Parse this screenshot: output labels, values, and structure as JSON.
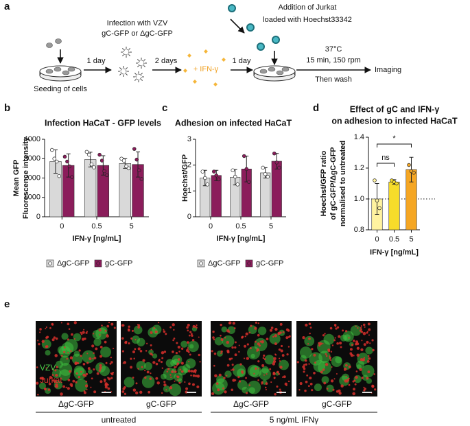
{
  "panel_labels": [
    "a",
    "b",
    "c",
    "d",
    "e"
  ],
  "workflow": {
    "seeding": "Seeding of cells",
    "infection": [
      "Infection with VZV",
      "gC-GFP or ΔgC-GFP"
    ],
    "step1": "1 day",
    "step2": "2 days",
    "ifn": "+ IFN-γ",
    "step3": "1 day",
    "jurkat": [
      "Addition of Jurkat",
      "loaded with Hoechst33342"
    ],
    "conditions": [
      "37°C",
      "15 min, 150 rpm"
    ],
    "wash": "Then wash",
    "readout": "Imaging"
  },
  "chart_data": [
    {
      "type": "bar",
      "title": [
        "Infection HaCaT - GFP levels"
      ],
      "y_label": [
        "Mean GFP",
        "Fluorescence intensity"
      ],
      "x_label": "IFN-γ [ng/mL]",
      "categories": [
        "0",
        "0.5",
        "5"
      ],
      "ylim": [
        0,
        4000
      ],
      "yticks": [
        0,
        1000,
        2000,
        3000,
        4000
      ],
      "legend": "bottom",
      "series": [
        {
          "name": "ΔgC-GFP",
          "color": "#d9d9d9",
          "values": [
            2850,
            2950,
            2750
          ],
          "errors": [
            600,
            380,
            250
          ],
          "points": [
            [
              3450,
              3000,
              2850,
              2100
            ],
            [
              3350,
              3200,
              2700,
              2550
            ],
            [
              3000,
              2900,
              2600,
              2500
            ]
          ]
        },
        {
          "name": "gC-GFP",
          "color": "#8b1d5b",
          "values": [
            2650,
            2650,
            2700
          ],
          "errors": [
            600,
            500,
            650
          ],
          "points": [
            [
              3100,
              2850,
              2600,
              2050
            ],
            [
              3200,
              2900,
              2350,
              2150
            ],
            [
              3500,
              2950,
              2400,
              1950
            ]
          ]
        }
      ]
    },
    {
      "type": "bar",
      "title": [
        "Adhesion on infected HaCaT"
      ],
      "y_label": [
        "Hoechst/GFP"
      ],
      "x_label": "IFN-γ [ng/mL]",
      "categories": [
        "0",
        "0.5",
        "5"
      ],
      "ylim": [
        0,
        3
      ],
      "yticks": [
        0,
        1,
        2,
        3
      ],
      "legend": "bottom",
      "series": [
        {
          "name": "ΔgC-GFP",
          "color": "#d9d9d9",
          "values": [
            1.5,
            1.53,
            1.7
          ],
          "errors": [
            0.3,
            0.3,
            0.2
          ],
          "points": [
            [
              1.75,
              1.5,
              1.25
            ],
            [
              1.8,
              1.55,
              1.25
            ],
            [
              1.9,
              1.65,
              1.55
            ]
          ]
        },
        {
          "name": "gC-GFP",
          "color": "#8b1d5b",
          "values": [
            1.6,
            1.85,
            2.15
          ],
          "errors": [
            0.2,
            0.5,
            0.3
          ],
          "points": [
            [
              1.75,
              1.6,
              1.45
            ],
            [
              2.35,
              1.85,
              1.35
            ],
            [
              2.45,
              2.1,
              1.9
            ]
          ]
        }
      ]
    },
    {
      "type": "bar",
      "title": [
        "Effect of gC and IFN-γ",
        "on adhesion to infected HaCaT"
      ],
      "y_label": [
        "Hoechst/GFP ratio",
        "of gC-GFP/ΔgC-GFP",
        "normalised to untreated"
      ],
      "x_label": "IFN-γ [ng/mL]",
      "categories": [
        "0",
        "0.5",
        "5"
      ],
      "ylim": [
        0.8,
        1.4
      ],
      "yticks": [
        {
          "value": 0.8,
          "label": "0.8"
        },
        {
          "value": 1.0,
          "label": "1.0"
        },
        {
          "value": 1.2,
          "label": "1.2"
        },
        {
          "value": 1.4,
          "label": "1.4"
        }
      ],
      "reference_line": 1,
      "series": [
        {
          "colors": [
            "#fff3a0",
            "#f7dc2a",
            "#f5a623"
          ],
          "values": [
            1.0,
            1.11,
            1.19
          ],
          "errors": [
            0.1,
            0.015,
            0.08
          ],
          "points": [
            [
              1.12,
              0.99,
              0.94
            ],
            [
              1.12,
              1.11,
              1.1
            ],
            [
              1.22,
              1.18,
              1.17
            ]
          ]
        }
      ],
      "significance": [
        {
          "label": "ns",
          "between": [
            "0",
            "0.5"
          ]
        },
        {
          "label": "*",
          "between": [
            "0",
            "5"
          ]
        }
      ]
    }
  ],
  "microscopy": {
    "channels": [
      "VZV",
      "Jurkat"
    ],
    "conditions": [
      "ΔgC-GFP",
      "gC-GFP",
      "ΔgC-GFP",
      "gC-GFP"
    ],
    "groups": [
      "untreated",
      "5 ng/mL IFNγ"
    ]
  }
}
